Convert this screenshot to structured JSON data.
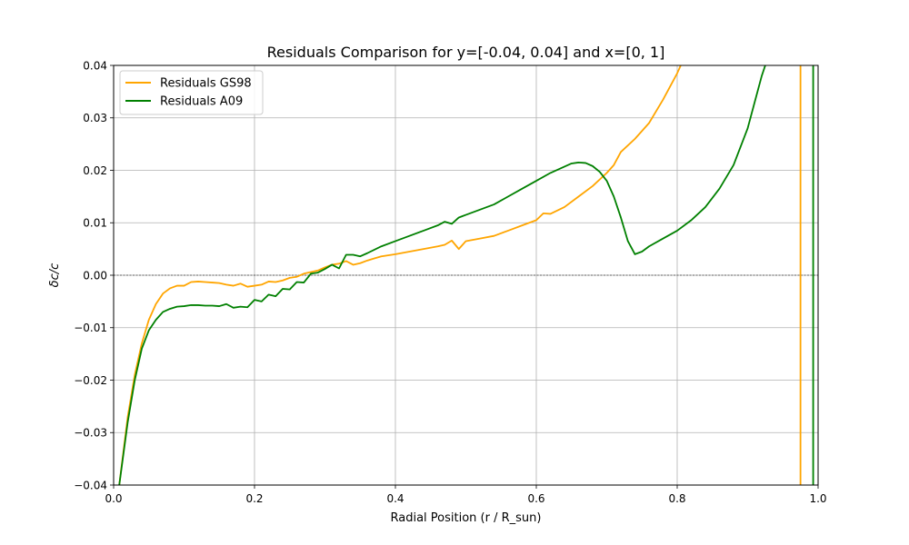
{
  "chart_data": {
    "type": "line",
    "title": "Residuals Comparison for y=[-0.04, 0.04] and x=[0, 1]",
    "xlabel": "Radial Position (r / R_sun)",
    "ylabel": "δc/c",
    "xlim": [
      0,
      1
    ],
    "ylim": [
      -0.04,
      0.04
    ],
    "xticks": [
      0.0,
      0.2,
      0.4,
      0.6,
      0.8,
      1.0
    ],
    "xtick_labels": [
      "0.0",
      "0.2",
      "0.4",
      "0.6",
      "0.8",
      "1.0"
    ],
    "yticks": [
      -0.04,
      -0.03,
      -0.02,
      -0.01,
      0.0,
      0.01,
      0.02,
      0.03,
      0.04
    ],
    "ytick_labels": [
      "−0.04",
      "−0.03",
      "−0.02",
      "−0.01",
      "0.00",
      "0.01",
      "0.02",
      "0.03",
      "0.04"
    ],
    "grid": true,
    "zero_line": true,
    "legend_position": "upper-left",
    "series": [
      {
        "name": "Residuals GS98",
        "color": "#FFA500",
        "points": [
          [
            0.008,
            -0.04
          ],
          [
            0.02,
            -0.027
          ],
          [
            0.03,
            -0.019
          ],
          [
            0.04,
            -0.013
          ],
          [
            0.05,
            -0.0085
          ],
          [
            0.06,
            -0.0055
          ],
          [
            0.07,
            -0.0035
          ],
          [
            0.08,
            -0.0025
          ],
          [
            0.09,
            -0.002
          ],
          [
            0.1,
            -0.002
          ],
          [
            0.11,
            -0.0013
          ],
          [
            0.12,
            -0.0012
          ],
          [
            0.13,
            -0.0013
          ],
          [
            0.14,
            -0.0014
          ],
          [
            0.15,
            -0.0015
          ],
          [
            0.16,
            -0.0018
          ],
          [
            0.17,
            -0.002
          ],
          [
            0.18,
            -0.0016
          ],
          [
            0.19,
            -0.0022
          ],
          [
            0.2,
            -0.002
          ],
          [
            0.21,
            -0.0018
          ],
          [
            0.22,
            -0.0012
          ],
          [
            0.23,
            -0.0013
          ],
          [
            0.24,
            -0.001
          ],
          [
            0.25,
            -0.0005
          ],
          [
            0.26,
            -0.0003
          ],
          [
            0.27,
            0.0003
          ],
          [
            0.28,
            0.0006
          ],
          [
            0.29,
            0.0009
          ],
          [
            0.3,
            0.0015
          ],
          [
            0.31,
            0.002
          ],
          [
            0.32,
            0.0022
          ],
          [
            0.33,
            0.0027
          ],
          [
            0.34,
            0.002
          ],
          [
            0.35,
            0.0023
          ],
          [
            0.36,
            0.0028
          ],
          [
            0.37,
            0.0032
          ],
          [
            0.38,
            0.0036
          ],
          [
            0.4,
            0.004
          ],
          [
            0.42,
            0.0045
          ],
          [
            0.44,
            0.005
          ],
          [
            0.46,
            0.0055
          ],
          [
            0.47,
            0.0058
          ],
          [
            0.48,
            0.0066
          ],
          [
            0.49,
            0.005
          ],
          [
            0.5,
            0.0065
          ],
          [
            0.52,
            0.007
          ],
          [
            0.54,
            0.0075
          ],
          [
            0.56,
            0.0085
          ],
          [
            0.58,
            0.0095
          ],
          [
            0.6,
            0.0105
          ],
          [
            0.61,
            0.0118
          ],
          [
            0.62,
            0.0117
          ],
          [
            0.64,
            0.013
          ],
          [
            0.66,
            0.015
          ],
          [
            0.68,
            0.017
          ],
          [
            0.7,
            0.0195
          ],
          [
            0.71,
            0.021
          ],
          [
            0.72,
            0.0235
          ],
          [
            0.74,
            0.026
          ],
          [
            0.76,
            0.029
          ],
          [
            0.78,
            0.0335
          ],
          [
            0.8,
            0.0385
          ],
          [
            0.805,
            0.04
          ]
        ],
        "drop_segment": [
          [
            0.975,
            0.04
          ],
          [
            0.975,
            -0.04
          ]
        ]
      },
      {
        "name": "Residuals A09",
        "color": "#008000",
        "points": [
          [
            0.008,
            -0.04
          ],
          [
            0.02,
            -0.028
          ],
          [
            0.03,
            -0.02
          ],
          [
            0.04,
            -0.014
          ],
          [
            0.05,
            -0.0105
          ],
          [
            0.06,
            -0.0085
          ],
          [
            0.07,
            -0.007
          ],
          [
            0.08,
            -0.0064
          ],
          [
            0.09,
            -0.006
          ],
          [
            0.1,
            -0.0059
          ],
          [
            0.11,
            -0.0057
          ],
          [
            0.12,
            -0.0057
          ],
          [
            0.13,
            -0.0058
          ],
          [
            0.14,
            -0.0058
          ],
          [
            0.15,
            -0.0059
          ],
          [
            0.16,
            -0.0055
          ],
          [
            0.17,
            -0.0062
          ],
          [
            0.18,
            -0.006
          ],
          [
            0.19,
            -0.0061
          ],
          [
            0.2,
            -0.0047
          ],
          [
            0.21,
            -0.005
          ],
          [
            0.22,
            -0.0037
          ],
          [
            0.23,
            -0.004
          ],
          [
            0.24,
            -0.0026
          ],
          [
            0.25,
            -0.0027
          ],
          [
            0.26,
            -0.0013
          ],
          [
            0.27,
            -0.0014
          ],
          [
            0.28,
            0.0003
          ],
          [
            0.29,
            0.0005
          ],
          [
            0.3,
            0.0012
          ],
          [
            0.31,
            0.002
          ],
          [
            0.32,
            0.0013
          ],
          [
            0.33,
            0.0039
          ],
          [
            0.34,
            0.0039
          ],
          [
            0.35,
            0.0036
          ],
          [
            0.36,
            0.0042
          ],
          [
            0.38,
            0.0055
          ],
          [
            0.4,
            0.0065
          ],
          [
            0.42,
            0.0075
          ],
          [
            0.44,
            0.0085
          ],
          [
            0.46,
            0.0095
          ],
          [
            0.47,
            0.0102
          ],
          [
            0.48,
            0.0098
          ],
          [
            0.49,
            0.011
          ],
          [
            0.5,
            0.0115
          ],
          [
            0.52,
            0.0125
          ],
          [
            0.54,
            0.0135
          ],
          [
            0.56,
            0.015
          ],
          [
            0.58,
            0.0165
          ],
          [
            0.6,
            0.018
          ],
          [
            0.62,
            0.0195
          ],
          [
            0.64,
            0.0207
          ],
          [
            0.65,
            0.0213
          ],
          [
            0.66,
            0.0215
          ],
          [
            0.67,
            0.0214
          ],
          [
            0.68,
            0.0208
          ],
          [
            0.69,
            0.0197
          ],
          [
            0.7,
            0.018
          ],
          [
            0.71,
            0.015
          ],
          [
            0.72,
            0.011
          ],
          [
            0.73,
            0.0065
          ],
          [
            0.74,
            0.004
          ],
          [
            0.75,
            0.0045
          ],
          [
            0.76,
            0.0055
          ],
          [
            0.78,
            0.007
          ],
          [
            0.8,
            0.0085
          ],
          [
            0.82,
            0.0105
          ],
          [
            0.84,
            0.013
          ],
          [
            0.86,
            0.0165
          ],
          [
            0.88,
            0.021
          ],
          [
            0.9,
            0.028
          ],
          [
            0.91,
            0.033
          ],
          [
            0.92,
            0.038
          ],
          [
            0.925,
            0.04
          ]
        ],
        "drop_segment": [
          [
            0.993,
            0.04
          ],
          [
            0.993,
            -0.04
          ]
        ]
      }
    ]
  }
}
